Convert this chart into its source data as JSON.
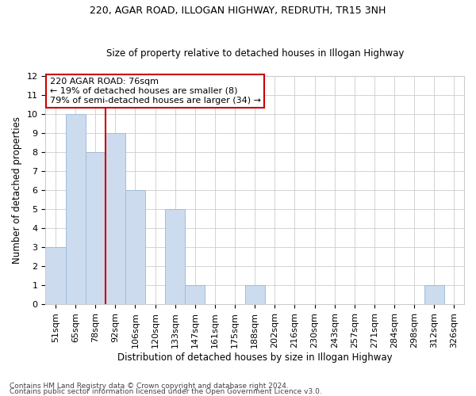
{
  "title1": "220, AGAR ROAD, ILLOGAN HIGHWAY, REDRUTH, TR15 3NH",
  "title2": "Size of property relative to detached houses in Illogan Highway",
  "xlabel": "Distribution of detached houses by size in Illogan Highway",
  "ylabel": "Number of detached properties",
  "categories": [
    "51sqm",
    "65sqm",
    "78sqm",
    "92sqm",
    "106sqm",
    "120sqm",
    "133sqm",
    "147sqm",
    "161sqm",
    "175sqm",
    "188sqm",
    "202sqm",
    "216sqm",
    "230sqm",
    "243sqm",
    "257sqm",
    "271sqm",
    "284sqm",
    "298sqm",
    "312sqm",
    "326sqm"
  ],
  "values": [
    3,
    10,
    8,
    9,
    6,
    0,
    5,
    1,
    0,
    0,
    1,
    0,
    0,
    0,
    0,
    0,
    0,
    0,
    0,
    1,
    0
  ],
  "bar_color": "#ccdcee",
  "bar_edge_color": "#a0bcd8",
  "highlight_line_color": "#cc0000",
  "annotation_text": "220 AGAR ROAD: 76sqm\n← 19% of detached houses are smaller (8)\n79% of semi-detached houses are larger (34) →",
  "annotation_box_color": "white",
  "annotation_box_edge": "#cc0000",
  "ylim": [
    0,
    12
  ],
  "yticks": [
    0,
    1,
    2,
    3,
    4,
    5,
    6,
    7,
    8,
    9,
    10,
    11,
    12
  ],
  "footnote1": "Contains HM Land Registry data © Crown copyright and database right 2024.",
  "footnote2": "Contains public sector information licensed under the Open Government Licence v3.0.",
  "grid_color": "#cccccc",
  "bg_color": "#ffffff",
  "title1_fontsize": 9,
  "title2_fontsize": 8.5,
  "xlabel_fontsize": 8.5,
  "ylabel_fontsize": 8.5,
  "tick_fontsize": 8,
  "annot_fontsize": 8,
  "footnote_fontsize": 6.5
}
